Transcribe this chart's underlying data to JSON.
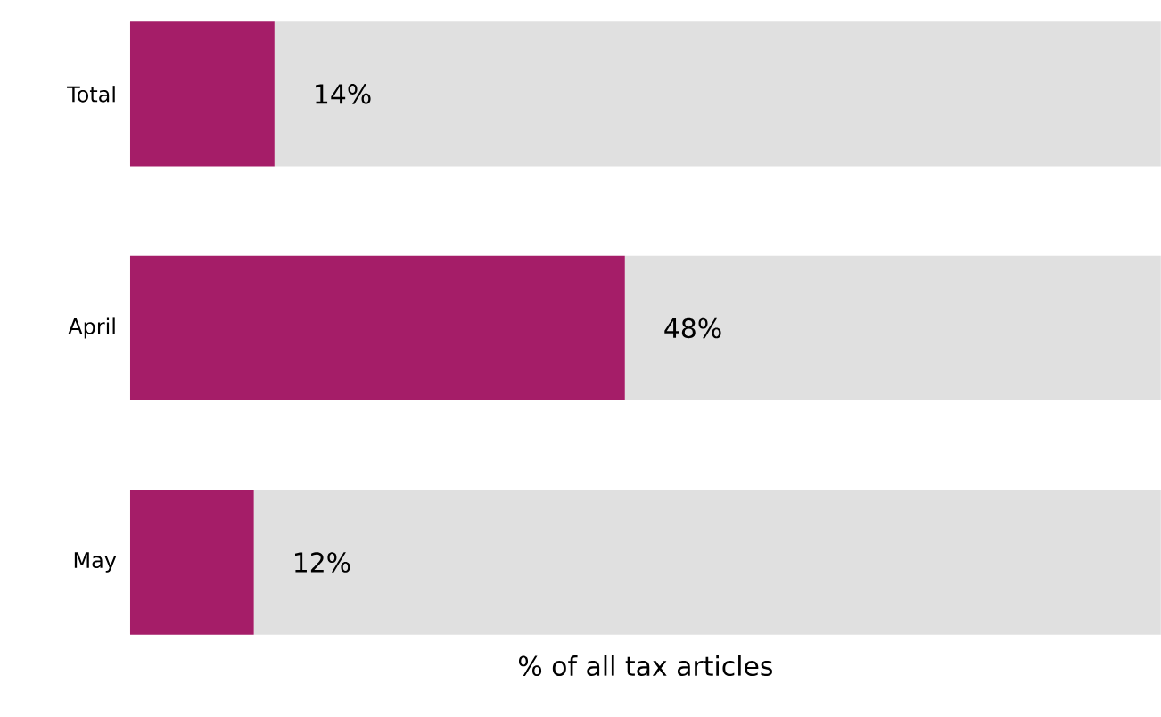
{
  "chart_data": {
    "type": "bar",
    "orientation": "horizontal",
    "stacked": true,
    "categories": [
      "Total",
      "April",
      "May"
    ],
    "series": [
      {
        "color": "#a51d68",
        "values": [
          14,
          48,
          12
        ],
        "value_labels": [
          "14%",
          "48%",
          "12%"
        ]
      },
      {
        "color": "#e0e0e0",
        "values": [
          86,
          52,
          88
        ]
      }
    ],
    "xlabel": "% of all tax articles",
    "xlim": [
      0,
      100
    ],
    "tick_labels": "y"
  }
}
